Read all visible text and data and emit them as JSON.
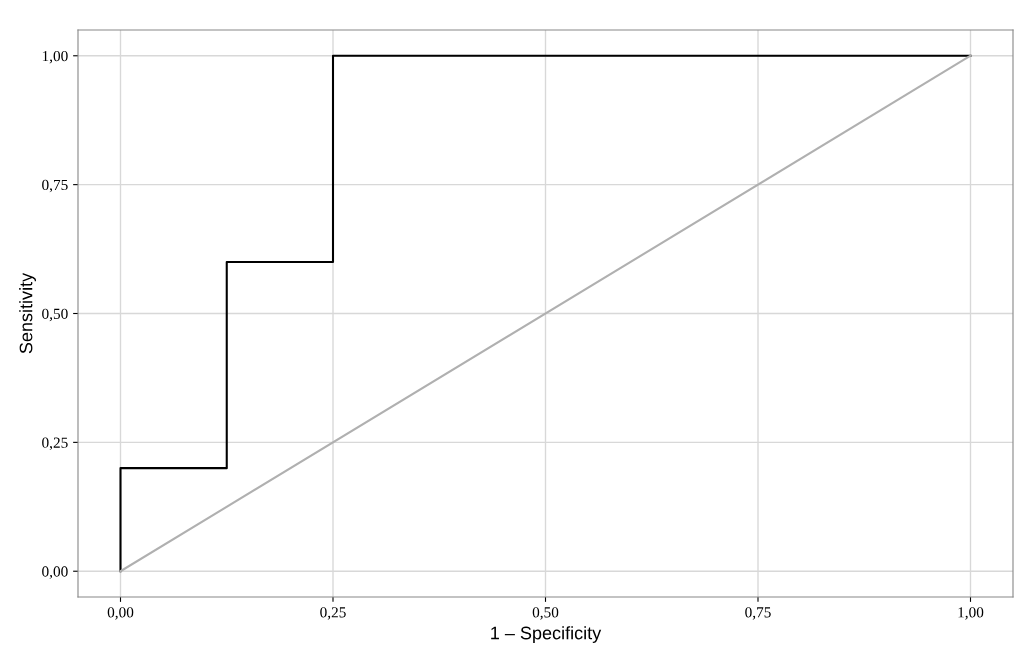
{
  "chart_data": {
    "type": "line",
    "xlabel": "1 – Specificity",
    "ylabel": "Sensitivity",
    "series": [
      {
        "color": "#000000",
        "x": [
          0,
          0,
          0.125,
          0.125,
          0.25,
          0.25,
          1
        ],
        "values": [
          0,
          0.2,
          0.2,
          0.6,
          0.6,
          1,
          1
        ]
      },
      {
        "color": "#b0b0b0",
        "x": [
          0,
          1
        ],
        "values": [
          0,
          1
        ]
      }
    ],
    "xlim": [
      -0.05,
      1.05
    ],
    "ylim": [
      -0.05,
      1.05
    ],
    "xticks": [
      {
        "value": 0,
        "label": "0,00"
      },
      {
        "value": 0.25,
        "label": "0,25"
      },
      {
        "value": 0.5,
        "label": "0,50"
      },
      {
        "value": 0.75,
        "label": "0,75"
      },
      {
        "value": 1,
        "label": "1,00"
      }
    ],
    "yticks": [
      {
        "value": 0,
        "label": "0,00"
      },
      {
        "value": 0.25,
        "label": "0,25"
      },
      {
        "value": 0.5,
        "label": "0,50"
      },
      {
        "value": 0.75,
        "label": "0,75"
      },
      {
        "value": 1,
        "label": "1,00"
      }
    ],
    "grid": true,
    "marker": "none",
    "line_style": "solid"
  }
}
